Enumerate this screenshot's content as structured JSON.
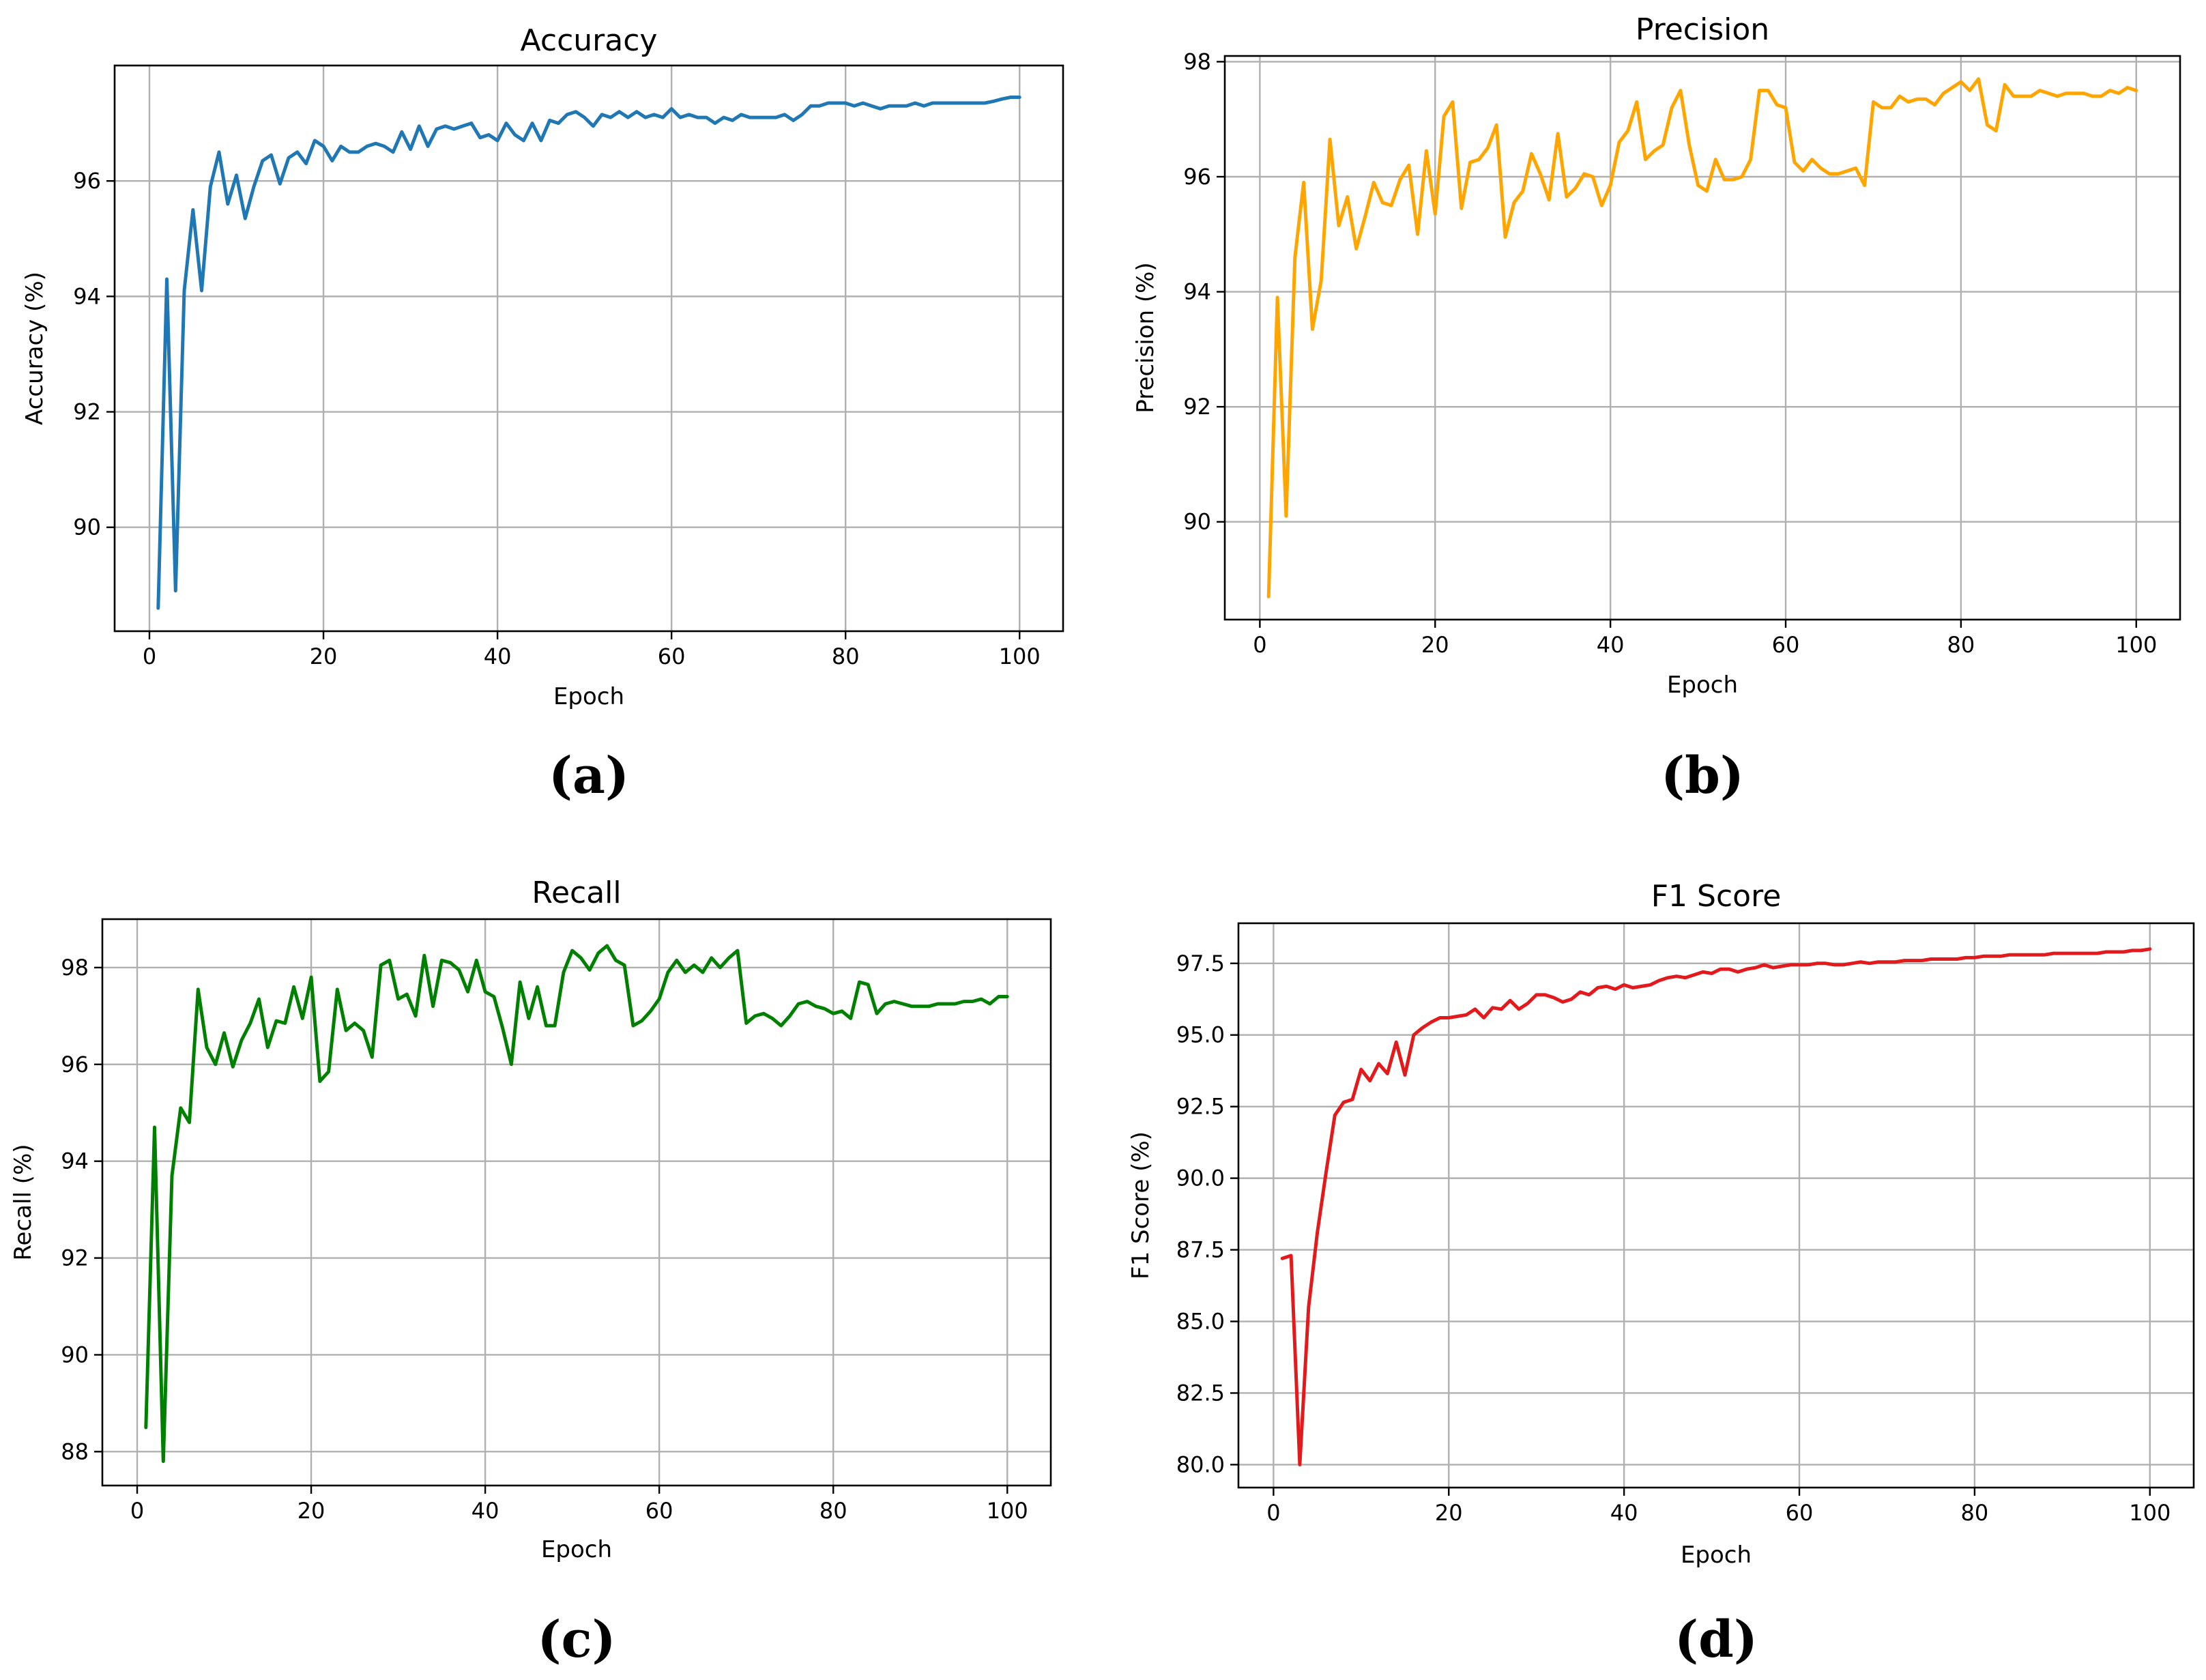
{
  "chart_data": [
    {
      "type": "line",
      "title": "Accuracy",
      "xlabel": "Epoch",
      "ylabel": "Accuracy (%)",
      "caption": "(a)",
      "color": "#1f77b4",
      "xlim": [
        -4,
        105
      ],
      "ylim": [
        88.2,
        98.0
      ],
      "xticks": [
        0,
        20,
        40,
        60,
        80,
        100
      ],
      "yticks": [
        90,
        92,
        94,
        96
      ],
      "x": [
        1,
        2,
        3,
        4,
        5,
        6,
        7,
        8,
        9,
        10,
        11,
        12,
        13,
        14,
        15,
        16,
        17,
        18,
        19,
        20,
        21,
        22,
        23,
        24,
        25,
        26,
        27,
        28,
        29,
        30,
        31,
        32,
        33,
        34,
        35,
        36,
        37,
        38,
        39,
        40,
        41,
        42,
        43,
        44,
        45,
        46,
        47,
        48,
        49,
        50,
        51,
        52,
        53,
        54,
        55,
        56,
        57,
        58,
        59,
        60,
        61,
        62,
        63,
        64,
        65,
        66,
        67,
        68,
        69,
        70,
        71,
        72,
        73,
        74,
        75,
        76,
        77,
        78,
        79,
        80,
        81,
        82,
        83,
        84,
        85,
        86,
        87,
        88,
        89,
        90,
        91,
        92,
        93,
        94,
        95,
        96,
        97,
        98,
        99,
        100
      ],
      "values": [
        88.6,
        94.3,
        88.9,
        94.1,
        95.5,
        94.1,
        95.9,
        96.5,
        95.6,
        96.1,
        95.35,
        95.9,
        96.35,
        96.45,
        95.95,
        96.4,
        96.5,
        96.3,
        96.7,
        96.6,
        96.35,
        96.6,
        96.5,
        96.5,
        96.6,
        96.65,
        96.6,
        96.5,
        96.85,
        96.55,
        96.95,
        96.6,
        96.9,
        96.95,
        96.9,
        96.95,
        97.0,
        96.75,
        96.8,
        96.7,
        97.0,
        96.8,
        96.7,
        97.0,
        96.7,
        97.05,
        97.0,
        97.15,
        97.2,
        97.1,
        96.95,
        97.15,
        97.1,
        97.2,
        97.1,
        97.2,
        97.1,
        97.15,
        97.1,
        97.25,
        97.1,
        97.15,
        97.1,
        97.1,
        97.0,
        97.1,
        97.05,
        97.15,
        97.1,
        97.1,
        97.1,
        97.1,
        97.15,
        97.05,
        97.15,
        97.3,
        97.3,
        97.35,
        97.35,
        97.35,
        97.3,
        97.35,
        97.3,
        97.25,
        97.3,
        97.3,
        97.3,
        97.35,
        97.3,
        97.35,
        97.35,
        97.35,
        97.35,
        97.35,
        97.35,
        97.35,
        97.38,
        97.42,
        97.45,
        97.45
      ]
    },
    {
      "type": "line",
      "title": "Precision",
      "xlabel": "Epoch",
      "ylabel": "Precision (%)",
      "caption": "(b)",
      "color": "#ffa500",
      "xlim": [
        -4,
        105
      ],
      "ylim": [
        88.3,
        98.1
      ],
      "xticks": [
        0,
        20,
        40,
        60,
        80,
        100
      ],
      "yticks": [
        90,
        92,
        94,
        96,
        98
      ],
      "x": [
        1,
        2,
        3,
        4,
        5,
        6,
        7,
        8,
        9,
        10,
        11,
        12,
        13,
        14,
        15,
        16,
        17,
        18,
        19,
        20,
        21,
        22,
        23,
        24,
        25,
        26,
        27,
        28,
        29,
        30,
        31,
        32,
        33,
        34,
        35,
        36,
        37,
        38,
        39,
        40,
        41,
        42,
        43,
        44,
        45,
        46,
        47,
        48,
        49,
        50,
        51,
        52,
        53,
        54,
        55,
        56,
        57,
        58,
        59,
        60,
        61,
        62,
        63,
        64,
        65,
        66,
        67,
        68,
        69,
        70,
        71,
        72,
        73,
        74,
        75,
        76,
        77,
        78,
        79,
        80,
        81,
        82,
        83,
        84,
        85,
        86,
        87,
        88,
        89,
        90,
        91,
        92,
        93,
        94,
        95,
        96,
        97,
        98,
        99,
        100
      ],
      "values": [
        88.7,
        93.9,
        90.1,
        94.6,
        95.9,
        93.35,
        94.2,
        96.65,
        95.15,
        95.65,
        94.75,
        95.3,
        95.9,
        95.55,
        95.5,
        95.95,
        96.2,
        95.0,
        96.45,
        95.35,
        97.05,
        97.3,
        95.45,
        96.25,
        96.3,
        96.5,
        96.9,
        94.95,
        95.55,
        95.75,
        96.4,
        96.05,
        95.6,
        96.75,
        95.65,
        95.8,
        96.05,
        96.0,
        95.5,
        95.85,
        96.6,
        96.8,
        97.3,
        96.3,
        96.45,
        96.55,
        97.2,
        97.5,
        96.55,
        95.85,
        95.75,
        96.3,
        95.95,
        95.95,
        96.0,
        96.3,
        97.5,
        97.5,
        97.25,
        97.2,
        96.25,
        96.1,
        96.3,
        96.15,
        96.05,
        96.05,
        96.1,
        96.15,
        95.85,
        97.3,
        97.2,
        97.2,
        97.4,
        97.3,
        97.35,
        97.35,
        97.25,
        97.45,
        97.55,
        97.65,
        97.5,
        97.7,
        96.9,
        96.8,
        97.6,
        97.4,
        97.4,
        97.4,
        97.5,
        97.45,
        97.4,
        97.45,
        97.45,
        97.45,
        97.4,
        97.4,
        97.5,
        97.45,
        97.55,
        97.5
      ]
    },
    {
      "type": "line",
      "title": "Recall",
      "xlabel": "Epoch",
      "ylabel": "Recall (%)",
      "caption": "(c)",
      "color": "#008000",
      "xlim": [
        -4,
        105
      ],
      "ylim": [
        87.3,
        99.0
      ],
      "xticks": [
        0,
        20,
        40,
        60,
        80,
        100
      ],
      "yticks": [
        88,
        90,
        92,
        94,
        96,
        98
      ],
      "x": [
        1,
        2,
        3,
        4,
        5,
        6,
        7,
        8,
        9,
        10,
        11,
        12,
        13,
        14,
        15,
        16,
        17,
        18,
        19,
        20,
        21,
        22,
        23,
        24,
        25,
        26,
        27,
        28,
        29,
        30,
        31,
        32,
        33,
        34,
        35,
        36,
        37,
        38,
        39,
        40,
        41,
        42,
        43,
        44,
        45,
        46,
        47,
        48,
        49,
        50,
        51,
        52,
        53,
        54,
        55,
        56,
        57,
        58,
        59,
        60,
        61,
        62,
        63,
        64,
        65,
        66,
        67,
        68,
        69,
        70,
        71,
        72,
        73,
        74,
        75,
        76,
        77,
        78,
        79,
        80,
        81,
        82,
        83,
        84,
        85,
        86,
        87,
        88,
        89,
        90,
        91,
        92,
        93,
        94,
        95,
        96,
        97,
        98,
        99,
        100
      ],
      "values": [
        88.5,
        94.7,
        87.8,
        93.7,
        95.1,
        94.8,
        97.55,
        96.35,
        96.0,
        96.65,
        95.95,
        96.5,
        96.85,
        97.35,
        96.35,
        96.9,
        96.85,
        97.6,
        96.95,
        97.8,
        95.65,
        95.85,
        97.55,
        96.7,
        96.85,
        96.7,
        96.15,
        98.05,
        98.15,
        97.35,
        97.45,
        97.0,
        98.25,
        97.2,
        98.15,
        98.1,
        97.95,
        97.5,
        98.15,
        97.5,
        97.4,
        96.75,
        96.0,
        97.7,
        96.95,
        97.6,
        96.8,
        96.8,
        97.9,
        98.35,
        98.2,
        97.95,
        98.3,
        98.45,
        98.15,
        98.05,
        96.8,
        96.9,
        97.1,
        97.35,
        97.9,
        98.15,
        97.9,
        98.05,
        97.9,
        98.2,
        98.0,
        98.2,
        98.35,
        96.85,
        97.0,
        97.05,
        96.95,
        96.8,
        97.0,
        97.25,
        97.3,
        97.2,
        97.15,
        97.05,
        97.1,
        96.95,
        97.7,
        97.65,
        97.05,
        97.25,
        97.3,
        97.25,
        97.2,
        97.2,
        97.2,
        97.25,
        97.25,
        97.25,
        97.3,
        97.3,
        97.35,
        97.25,
        97.4,
        97.4
      ]
    },
    {
      "type": "line",
      "title": "F1 Score",
      "xlabel": "Epoch",
      "ylabel": "F1 Score (%)",
      "caption": "(d)",
      "color": "#e31a1c",
      "xlim": [
        -4,
        105
      ],
      "ylim": [
        79.2,
        98.9
      ],
      "xticks": [
        0,
        20,
        40,
        60,
        80,
        100
      ],
      "yticks": [
        80.0,
        82.5,
        85.0,
        87.5,
        90.0,
        92.5,
        95.0,
        97.5
      ],
      "x": [
        1,
        2,
        3,
        4,
        5,
        6,
        7,
        8,
        9,
        10,
        11,
        12,
        13,
        14,
        15,
        16,
        17,
        18,
        19,
        20,
        21,
        22,
        23,
        24,
        25,
        26,
        27,
        28,
        29,
        30,
        31,
        32,
        33,
        34,
        35,
        36,
        37,
        38,
        39,
        40,
        41,
        42,
        43,
        44,
        45,
        46,
        47,
        48,
        49,
        50,
        51,
        52,
        53,
        54,
        55,
        56,
        57,
        58,
        59,
        60,
        61,
        62,
        63,
        64,
        65,
        66,
        67,
        68,
        69,
        70,
        71,
        72,
        73,
        74,
        75,
        76,
        77,
        78,
        79,
        80,
        81,
        82,
        83,
        84,
        85,
        86,
        87,
        88,
        89,
        90,
        91,
        92,
        93,
        94,
        95,
        96,
        97,
        98,
        99,
        100
      ],
      "values": [
        87.2,
        87.3,
        80.0,
        85.5,
        88.1,
        90.2,
        92.2,
        92.65,
        92.75,
        93.8,
        93.4,
        94.0,
        93.65,
        94.75,
        93.6,
        95.0,
        95.25,
        95.45,
        95.6,
        95.6,
        95.65,
        95.7,
        95.9,
        95.6,
        95.95,
        95.9,
        96.2,
        95.9,
        96.1,
        96.4,
        96.4,
        96.3,
        96.15,
        96.25,
        96.5,
        96.4,
        96.65,
        96.7,
        96.6,
        96.75,
        96.65,
        96.7,
        96.75,
        96.9,
        97.0,
        97.05,
        97.0,
        97.1,
        97.2,
        97.15,
        97.3,
        97.3,
        97.2,
        97.3,
        97.35,
        97.45,
        97.35,
        97.4,
        97.45,
        97.45,
        97.45,
        97.5,
        97.5,
        97.45,
        97.45,
        97.5,
        97.55,
        97.5,
        97.55,
        97.55,
        97.55,
        97.6,
        97.6,
        97.6,
        97.65,
        97.65,
        97.65,
        97.65,
        97.7,
        97.7,
        97.75,
        97.75,
        97.75,
        97.8,
        97.8,
        97.8,
        97.8,
        97.8,
        97.85,
        97.85,
        97.85,
        97.85,
        97.85,
        97.85,
        97.9,
        97.9,
        97.9,
        97.95,
        97.95,
        98.0
      ]
    }
  ]
}
